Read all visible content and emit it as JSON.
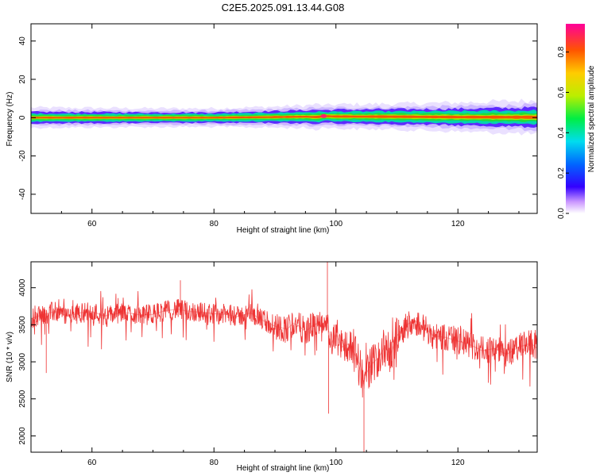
{
  "title": "C2E5.2025.091.13.44.G08",
  "chart_data": [
    {
      "type": "heatmap",
      "xlabel": "Height of straight line (km)",
      "ylabel": "Frequency (Hz)",
      "xlim": [
        50,
        133
      ],
      "ylim": [
        -50,
        49
      ],
      "xticks": [
        60,
        80,
        100,
        120
      ],
      "yticks": [
        40,
        20,
        0,
        -20,
        -40
      ],
      "colorbar": {
        "label": "Normalized spectral amplitude",
        "range": [
          0,
          0.94
        ],
        "ticks": [
          0.0,
          0.2,
          0.4,
          0.6,
          0.8
        ]
      },
      "band": {
        "x": [
          50,
          60,
          70,
          80,
          90,
          95,
          97,
          98,
          100,
          110,
          120,
          133
        ],
        "center": [
          0,
          0,
          0,
          0,
          0.3,
          0.5,
          0.3,
          0.8,
          0.6,
          0.5,
          0.3,
          0.2
        ],
        "halfwidth_hz": [
          2.5,
          2.4,
          2.3,
          2.3,
          2.6,
          2.8,
          3.2,
          2.6,
          3.0,
          3.2,
          3.6,
          4.2
        ],
        "peak_amplitude": [
          0.9,
          0.88,
          0.86,
          0.85,
          0.82,
          0.8,
          0.85,
          0.94,
          0.8,
          0.74,
          0.7,
          0.68
        ]
      }
    },
    {
      "type": "line",
      "xlabel": "Height of straight line (km)",
      "ylabel": "SNR (10 * v/v)",
      "xlim": [
        50,
        133
      ],
      "ylim": [
        1780,
        4350
      ],
      "xticks": [
        60,
        80,
        100,
        120
      ],
      "yticks": [
        2000,
        2500,
        3000,
        3500,
        4000
      ],
      "color": "#ee3333",
      "series": [
        {
          "name": "",
          "x": [
            50,
            52,
            54,
            56,
            58,
            60,
            62,
            64,
            66,
            68,
            70,
            72,
            74,
            76,
            78,
            80,
            82,
            84,
            86,
            88,
            90,
            92,
            93,
            94,
            95,
            96,
            97,
            98,
            98.5,
            99,
            100,
            101,
            102,
            103,
            104,
            104.5,
            105,
            106,
            107,
            108,
            109,
            110,
            111,
            112,
            113,
            114,
            115,
            116,
            118,
            120,
            122,
            124,
            126,
            128,
            130,
            132,
            133
          ],
          "y": [
            3580,
            3640,
            3680,
            3620,
            3660,
            3680,
            3620,
            3650,
            3660,
            3630,
            3640,
            3690,
            3710,
            3680,
            3670,
            3650,
            3640,
            3610,
            3660,
            3560,
            3480,
            3440,
            3520,
            3480,
            3400,
            3480,
            3520,
            3420,
            3600,
            3200,
            3380,
            3200,
            3240,
            3120,
            2950,
            2700,
            2850,
            2980,
            3060,
            3200,
            3100,
            3350,
            3450,
            3520,
            3550,
            3480,
            3430,
            3350,
            3330,
            3280,
            3230,
            3150,
            3180,
            3100,
            3200,
            3250,
            3180
          ]
        }
      ]
    }
  ]
}
